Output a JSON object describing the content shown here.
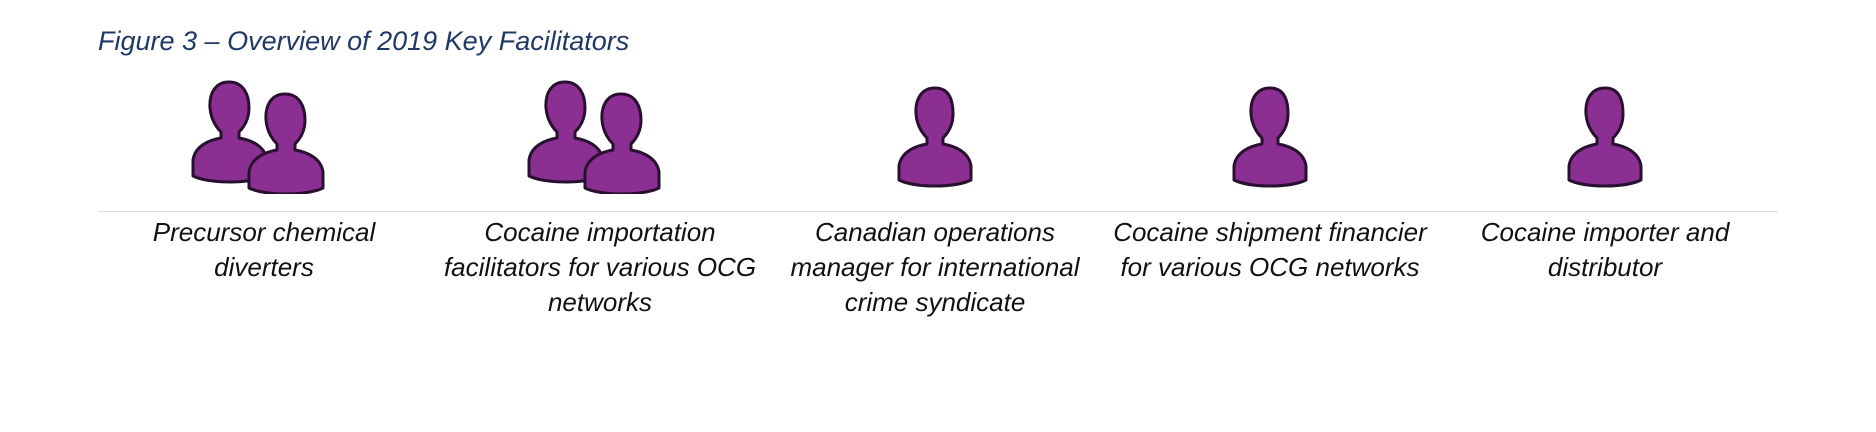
{
  "figure": {
    "title": "Figure 3 – Overview of 2019 Key Facilitators"
  },
  "colors": {
    "icon_fill": "#8b2f92",
    "icon_stroke": "#2a1030",
    "title_color": "#1f3864"
  },
  "facilitators": [
    {
      "icon": "group-people-icon",
      "label": "Precursor chemical diverters"
    },
    {
      "icon": "group-people-icon",
      "label": "Cocaine importation facilitators for various OCG networks"
    },
    {
      "icon": "person-icon",
      "label": "Canadian operations manager for international crime syndicate"
    },
    {
      "icon": "person-icon",
      "label": "Cocaine shipment financier for various OCG networks"
    },
    {
      "icon": "person-icon",
      "label": "Cocaine importer and distributor"
    }
  ]
}
